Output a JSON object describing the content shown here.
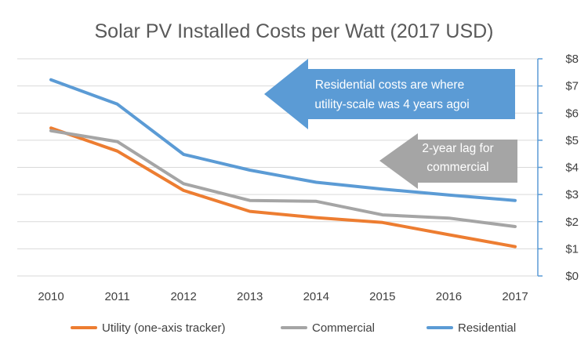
{
  "chart_data": {
    "type": "line",
    "title": "Solar PV Installed Costs per Watt (2017 USD)",
    "x": [
      "2010",
      "2011",
      "2012",
      "2013",
      "2014",
      "2015",
      "2016",
      "2017"
    ],
    "ylim": [
      0,
      8
    ],
    "yticks": [
      "$0",
      "$1",
      "$2",
      "$3",
      "$4",
      "$5",
      "$6",
      "$7",
      "$8"
    ],
    "y_axis_side": "right",
    "grid": true,
    "legend_position": "bottom",
    "series": [
      {
        "name": "Utility (one-axis tracker)",
        "color": "#ED7D31",
        "values": [
          5.45,
          4.6,
          3.15,
          2.38,
          2.15,
          1.97,
          1.52,
          1.08
        ]
      },
      {
        "name": "Commercial",
        "color": "#A5A5A5",
        "values": [
          5.35,
          4.95,
          3.4,
          2.78,
          2.75,
          2.25,
          2.13,
          1.82
        ]
      },
      {
        "name": "Residential",
        "color": "#5B9BD5",
        "values": [
          7.23,
          6.33,
          4.48,
          3.9,
          3.45,
          3.2,
          2.98,
          2.78
        ]
      }
    ],
    "annotations": [
      {
        "text_lines": [
          "Residential costs are where",
          "utility-scale was 4 years agoi"
        ],
        "color": "#5B9BD5",
        "direction": "left"
      },
      {
        "text_lines": [
          "2-year lag for",
          "commercial"
        ],
        "color": "#A5A5A5",
        "direction": "left"
      }
    ]
  }
}
